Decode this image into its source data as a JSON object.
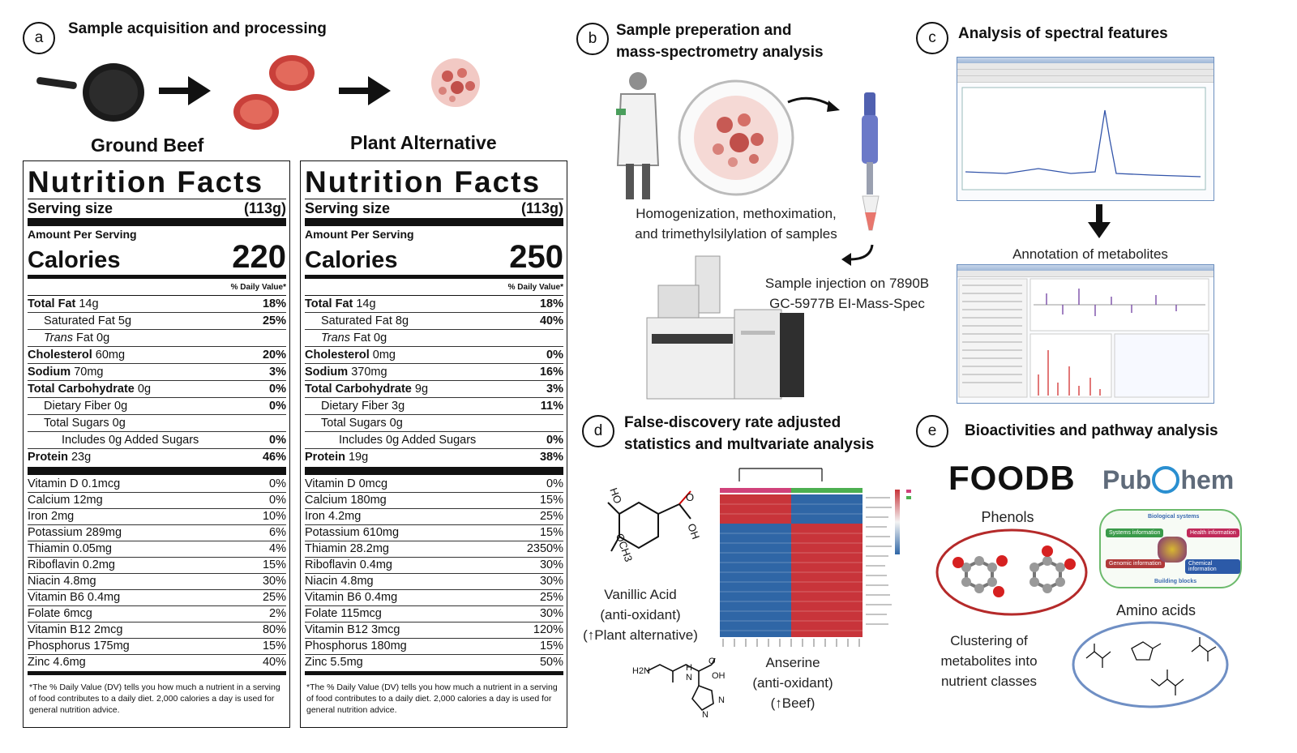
{
  "panel_a": {
    "letter": "a",
    "title": "Sample acquisition and processing",
    "left_label": "Ground Beef",
    "right_label": "Plant Alternative",
    "labels": [
      {
        "title": "Nutrition Facts",
        "serving_label": "Serving size",
        "serving_value": "(113g)",
        "amount_per_serving": "Amount Per Serving",
        "calories_label": "Calories",
        "calories_value": "220",
        "daily_value_header": "% Daily Value*",
        "rows": [
          {
            "bold": "Total Fat",
            "rest": " 14g",
            "pct": "18%"
          },
          {
            "bold": "",
            "rest": "Saturated Fat 5g",
            "pct": "25%"
          },
          {
            "italic": "Trans",
            "rest": " Fat 0g",
            "pct": ""
          },
          {
            "bold": "Cholesterol",
            "rest": " 60mg",
            "pct": "20%"
          },
          {
            "bold": "Sodium",
            "rest": " 70mg",
            "pct": "3%"
          },
          {
            "bold": "Total Carbohydrate",
            "rest": " 0g",
            "pct": "0%"
          },
          {
            "bold": "",
            "rest": "Dietary Fiber 0g",
            "pct": "0%"
          },
          {
            "bold": "",
            "rest": "Total Sugars 0g",
            "pct": ""
          },
          {
            "bold": "",
            "rest": "Includes 0g Added Sugars",
            "pct": "0%"
          },
          {
            "bold": "Protein",
            "rest": " 23g",
            "pct": "46%"
          }
        ],
        "vitamins": [
          {
            "name": "Vitamin D 0.1mcg",
            "pct": "0%"
          },
          {
            "name": "Calcium 12mg",
            "pct": "0%"
          },
          {
            "name": "Iron 2mg",
            "pct": "10%"
          },
          {
            "name": "Potassium 289mg",
            "pct": "6%"
          },
          {
            "name": "Thiamin 0.05mg",
            "pct": "4%"
          },
          {
            "name": "Riboflavin 0.2mg",
            "pct": "15%"
          },
          {
            "name": "Niacin 4.8mg",
            "pct": "30%"
          },
          {
            "name": "Vitamin B6 0.4mg",
            "pct": "25%"
          },
          {
            "name": "Folate 6mcg",
            "pct": "2%"
          },
          {
            "name": "Vitamin B12 2mcg",
            "pct": "80%"
          },
          {
            "name": "Phosphorus 175mg",
            "pct": "15%"
          },
          {
            "name": "Zinc 4.6mg",
            "pct": "40%"
          }
        ],
        "footnote": "*The % Daily Value (DV) tells you how much a nutrient in a serving of food contributes to a daily diet. 2,000 calories a day is used for general nutrition advice."
      },
      {
        "title": "Nutrition Facts",
        "serving_label": "Serving size",
        "serving_value": "(113g)",
        "amount_per_serving": "Amount Per Serving",
        "calories_label": "Calories",
        "calories_value": "250",
        "daily_value_header": "% Daily Value*",
        "rows": [
          {
            "bold": "Total Fat",
            "rest": " 14g",
            "pct": "18%"
          },
          {
            "bold": "",
            "rest": "Saturated Fat 8g",
            "pct": "40%"
          },
          {
            "italic": "Trans",
            "rest": " Fat 0g",
            "pct": ""
          },
          {
            "bold": "Cholesterol",
            "rest": " 0mg",
            "pct": "0%"
          },
          {
            "bold": "Sodium",
            "rest": " 370mg",
            "pct": "16%"
          },
          {
            "bold": "Total Carbohydrate",
            "rest": " 9g",
            "pct": "3%"
          },
          {
            "bold": "",
            "rest": "Dietary Fiber 3g",
            "pct": "11%"
          },
          {
            "bold": "",
            "rest": "Total Sugars 0g",
            "pct": ""
          },
          {
            "bold": "",
            "rest": "Includes 0g Added Sugars",
            "pct": "0%"
          },
          {
            "bold": "Protein",
            "rest": " 19g",
            "pct": "38%"
          }
        ],
        "vitamins": [
          {
            "name": "Vitamin D 0mcg",
            "pct": "0%"
          },
          {
            "name": "Calcium 180mg",
            "pct": "15%"
          },
          {
            "name": "Iron 4.2mg",
            "pct": "25%"
          },
          {
            "name": "Potassium 610mg",
            "pct": "15%"
          },
          {
            "name": "Thiamin 28.2mg",
            "pct": "2350%"
          },
          {
            "name": "Riboflavin 0.4mg",
            "pct": "30%"
          },
          {
            "name": "Niacin 4.8mg",
            "pct": "30%"
          },
          {
            "name": "Vitamin B6 0.4mg",
            "pct": "25%"
          },
          {
            "name": "Folate 115mcg",
            "pct": "30%"
          },
          {
            "name": "Vitamin B12 3mcg",
            "pct": "120%"
          },
          {
            "name": "Phosphorus 180mg",
            "pct": "15%"
          },
          {
            "name": "Zinc 5.5mg",
            "pct": "50%"
          }
        ],
        "footnote": "*The % Daily Value (DV) tells you how much a nutrient in a serving of food contributes to a daily diet. 2,000 calories a day is used for general nutrition advice."
      }
    ]
  },
  "panel_b": {
    "letter": "b",
    "title_line1": "Sample preperation and",
    "title_line2": "mass-spectrometry analysis",
    "caption_line1": "Homogenization, methoximation,",
    "caption_line2": "and trimethylsilylation of samples",
    "injection_line1": "Sample injection on 7890B",
    "injection_line2": "GC-5977B EI-Mass-Spec"
  },
  "panel_c": {
    "letter": "c",
    "title": "Analysis of spectral features",
    "annotation": "Annotation of metabolites"
  },
  "panel_d": {
    "letter": "d",
    "title_line1": "False-discovery rate adjusted",
    "title_line2": "statistics and multvariate analysis",
    "vanillic_line1": "Vanillic Acid",
    "vanillic_line2": "(anti-oxidant)",
    "vanillic_line3": "(↑Plant alternative)",
    "anserine_line1": "Anserine",
    "anserine_line2": "(anti-oxidant)",
    "anserine_line3": "(↑Beef)",
    "mol_labels": {
      "ho": "HO",
      "och3": "OCH3",
      "oh": "OH",
      "o": "O",
      "h2n": "H2N",
      "h": "H",
      "n": "N",
      "oh2": "OH",
      "n2": "N",
      "n3": "N"
    }
  },
  "panel_e": {
    "letter": "e",
    "title": "Bioactivities and pathway analysis",
    "foodb": "FOODB",
    "pubchem_a": "Pub",
    "pubchem_b": "hem",
    "phenols": "Phenols",
    "amino_acids": "Amino acids",
    "clustering_line1": "Clustering of",
    "clustering_line2": "metabolites into",
    "clustering_line3": "nutrient classes",
    "pub_boxes": [
      "Biological systems",
      "Systems information",
      "Health information",
      "Genomic information",
      "Chemical information",
      "Building blocks"
    ]
  }
}
